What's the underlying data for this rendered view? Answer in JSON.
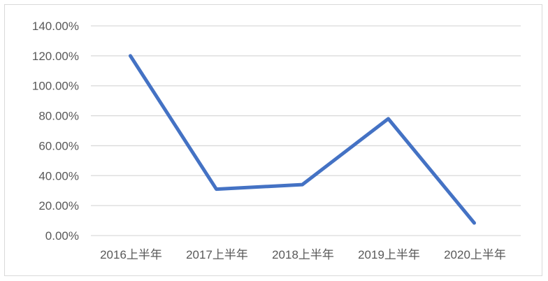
{
  "chart_data": {
    "type": "line",
    "categories": [
      "2016上半年",
      "2017上半年",
      "2018上半年",
      "2019上半年",
      "2020上半年"
    ],
    "series": [
      {
        "values": [
          120,
          31,
          34,
          78,
          8.4
        ]
      }
    ],
    "ylim": [
      0,
      140
    ],
    "yticks": [
      "0.00%",
      "20.00%",
      "40.00%",
      "60.00%",
      "80.00%",
      "100.00%",
      "120.00%",
      "140.00%"
    ],
    "grid": true,
    "line_color": "#4472C4",
    "grid_color": "#d9d9d9"
  }
}
